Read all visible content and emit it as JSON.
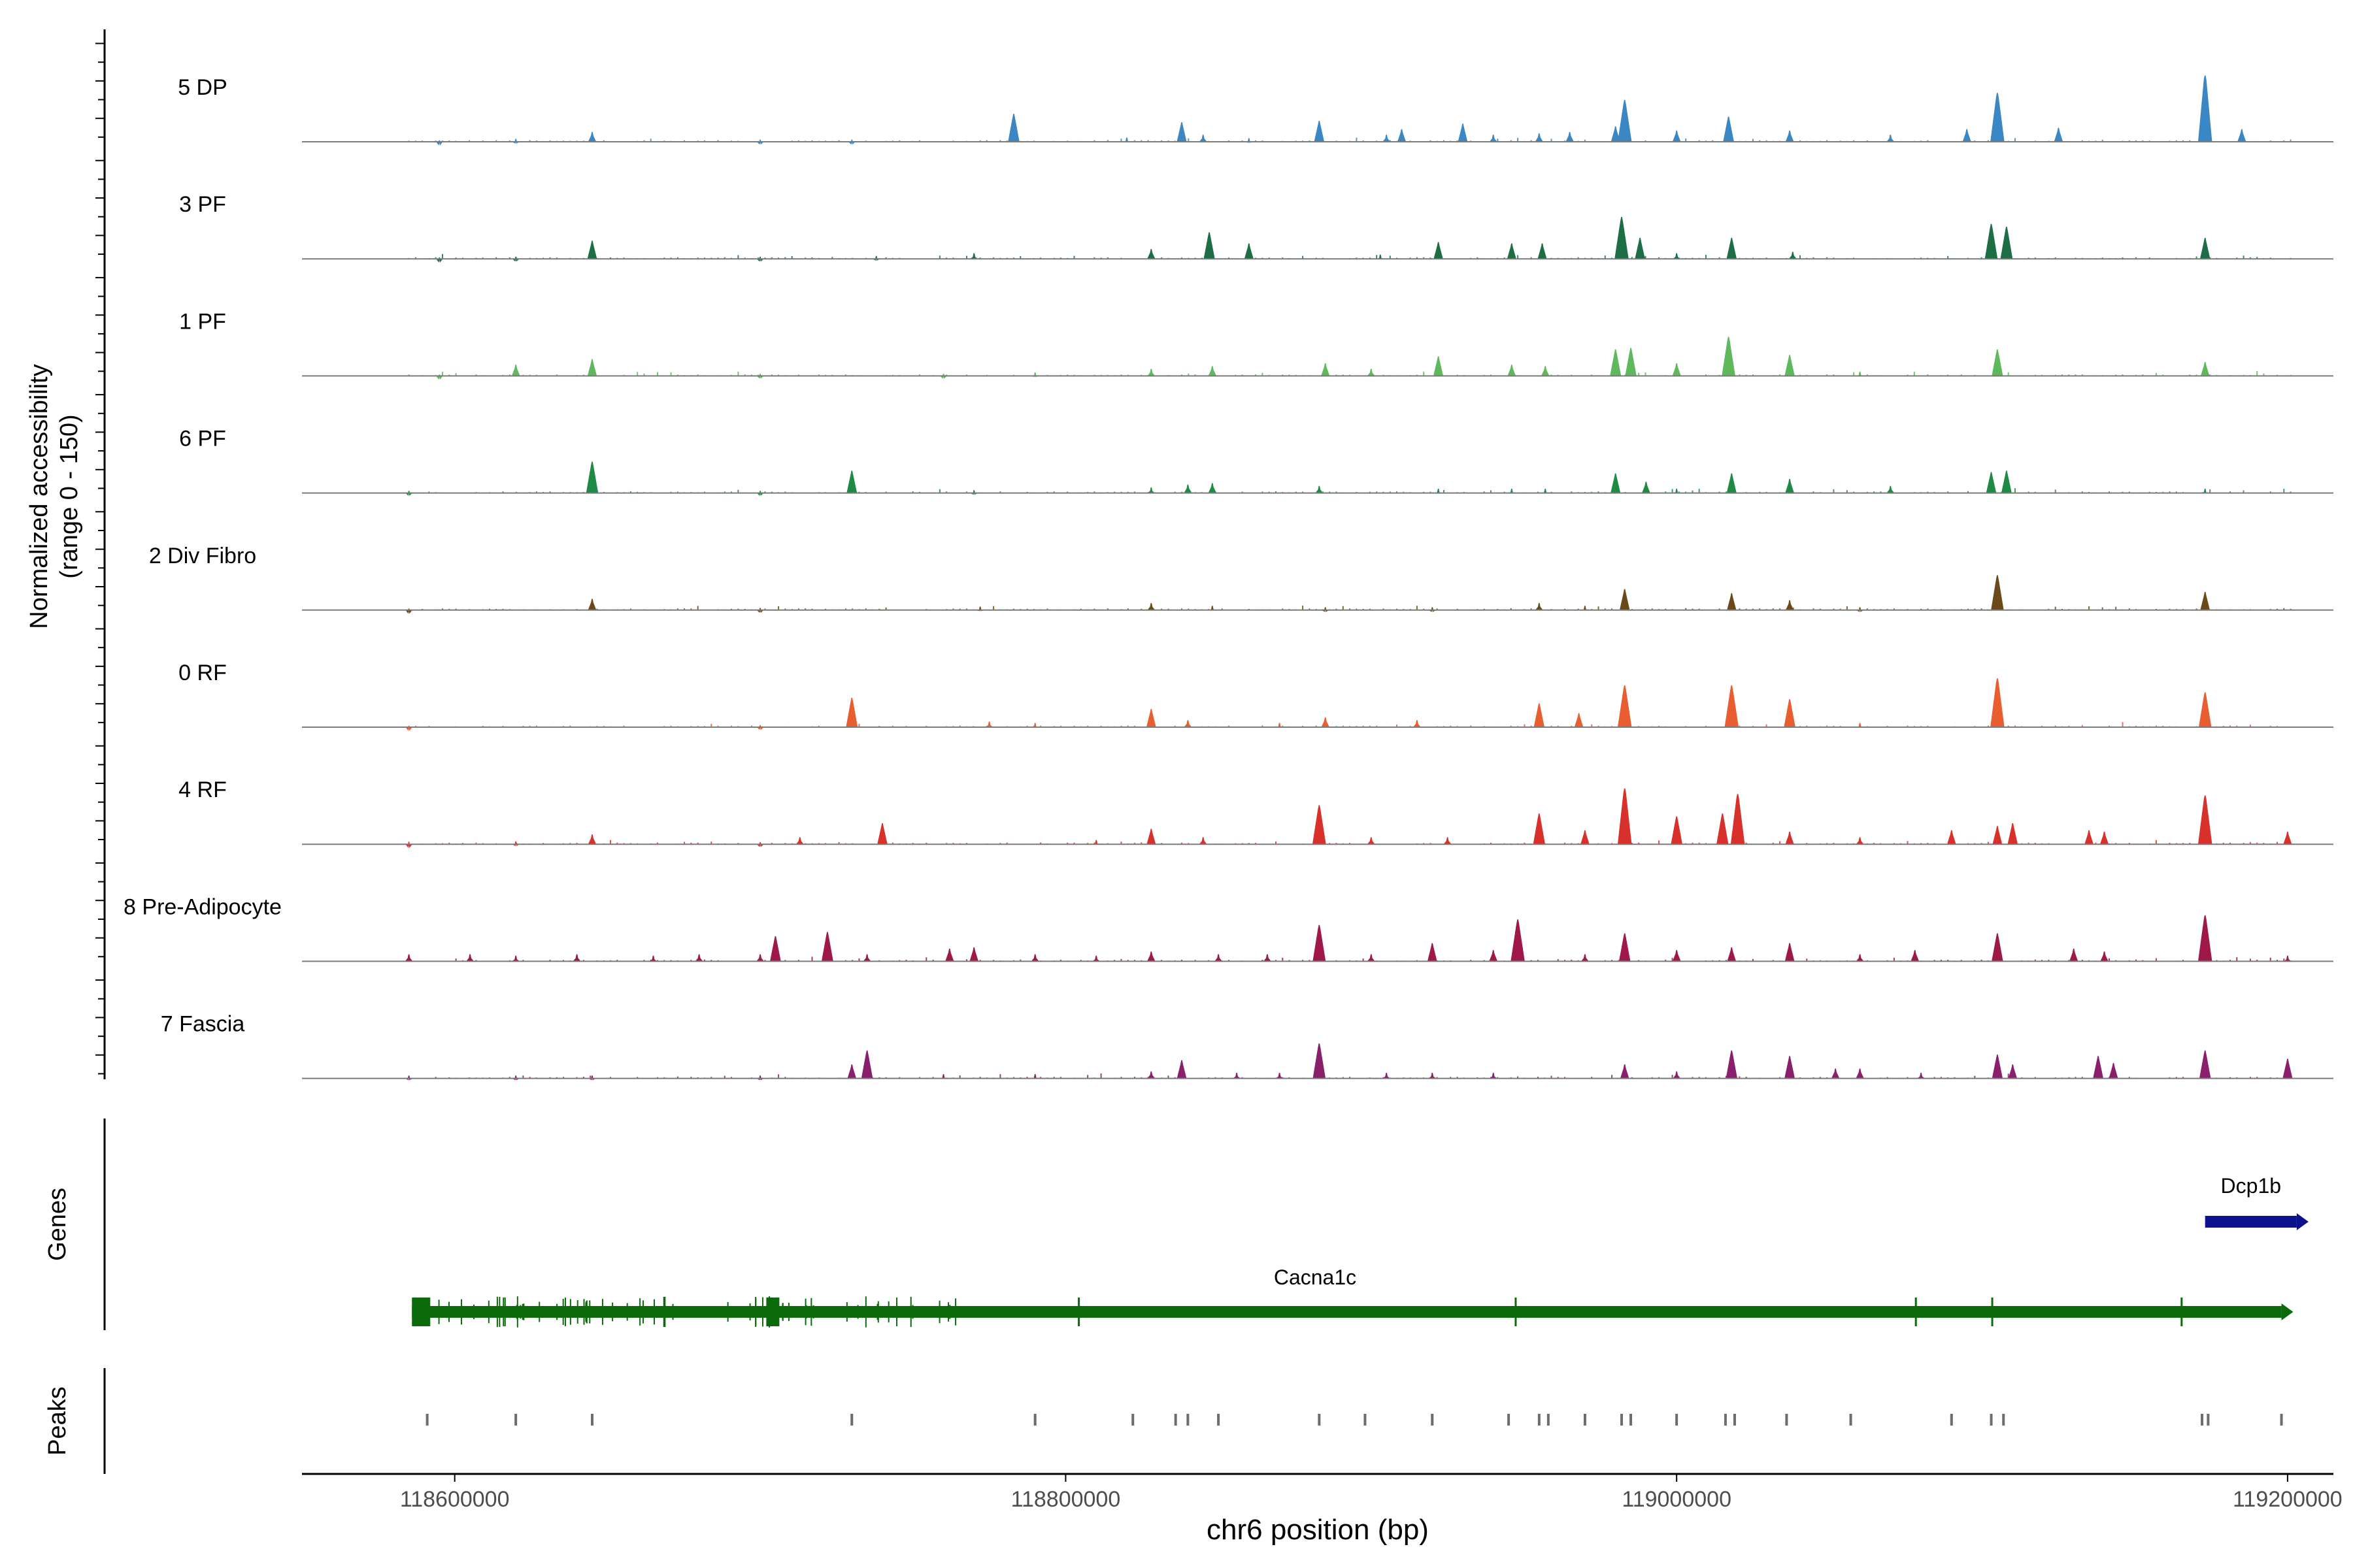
{
  "chart_data": {
    "type": "area",
    "title": "",
    "ylabel": "Normalized accessibility\n(range 0 - 150)",
    "xlabel": "chr6 position (bp)",
    "xlim": [
      118550000,
      119215000
    ],
    "ylim": [
      0,
      150
    ],
    "x_ticks": [
      "118600000",
      "118800000",
      "119000000",
      "119200000"
    ],
    "x_tick_values": [
      118600000,
      118800000,
      119000000,
      119200000
    ],
    "genes_label": "Genes",
    "peaks_label": "Peaks",
    "series": [
      {
        "name": "5 DP",
        "color": "#3a87c4",
        "peaks": [
          [
            118595000,
            2
          ],
          [
            118620000,
            4
          ],
          [
            118645000,
            14
          ],
          [
            118700000,
            3
          ],
          [
            118730000,
            3
          ],
          [
            118783000,
            40
          ],
          [
            118820000,
            6
          ],
          [
            118838000,
            28
          ],
          [
            118845000,
            10
          ],
          [
            118860000,
            5
          ],
          [
            118883000,
            30
          ],
          [
            118905000,
            10
          ],
          [
            118910000,
            18
          ],
          [
            118930000,
            26
          ],
          [
            118940000,
            10
          ],
          [
            118955000,
            12
          ],
          [
            118965000,
            14
          ],
          [
            118980000,
            22
          ],
          [
            118983000,
            60
          ],
          [
            119000000,
            16
          ],
          [
            119017000,
            36
          ],
          [
            119037000,
            16
          ],
          [
            119070000,
            10
          ],
          [
            119095000,
            18
          ],
          [
            119105000,
            70
          ],
          [
            119125000,
            20
          ],
          [
            119173000,
            95
          ],
          [
            119185000,
            18
          ]
        ]
      },
      {
        "name": "3 PF",
        "color": "#1d6e45",
        "peaks": [
          [
            118595000,
            2
          ],
          [
            118620000,
            3
          ],
          [
            118645000,
            26
          ],
          [
            118700000,
            3
          ],
          [
            118738000,
            4
          ],
          [
            118770000,
            8
          ],
          [
            118828000,
            14
          ],
          [
            118847000,
            38
          ],
          [
            118860000,
            22
          ],
          [
            118903000,
            6
          ],
          [
            118922000,
            24
          ],
          [
            118946000,
            22
          ],
          [
            118956000,
            22
          ],
          [
            118982000,
            60
          ],
          [
            118988000,
            30
          ],
          [
            119000000,
            8
          ],
          [
            119018000,
            30
          ],
          [
            119038000,
            10
          ],
          [
            119103000,
            50
          ],
          [
            119108000,
            46
          ],
          [
            119173000,
            30
          ]
        ]
      },
      {
        "name": "1 PF",
        "color": "#5fb85c",
        "peaks": [
          [
            118595000,
            2
          ],
          [
            118620000,
            16
          ],
          [
            118645000,
            24
          ],
          [
            118700000,
            3
          ],
          [
            118760000,
            3
          ],
          [
            118790000,
            5
          ],
          [
            118828000,
            10
          ],
          [
            118848000,
            14
          ],
          [
            118885000,
            18
          ],
          [
            118900000,
            10
          ],
          [
            118922000,
            28
          ],
          [
            118946000,
            16
          ],
          [
            118957000,
            14
          ],
          [
            118980000,
            38
          ],
          [
            118985000,
            40
          ],
          [
            119000000,
            18
          ],
          [
            119017000,
            56
          ],
          [
            119037000,
            30
          ],
          [
            119060000,
            6
          ],
          [
            119105000,
            38
          ],
          [
            119173000,
            20
          ]
        ]
      },
      {
        "name": "6 PF",
        "color": "#1e8b45",
        "peaks": [
          [
            118585000,
            3
          ],
          [
            118645000,
            45
          ],
          [
            118700000,
            3
          ],
          [
            118730000,
            32
          ],
          [
            118770000,
            4
          ],
          [
            118828000,
            8
          ],
          [
            118840000,
            12
          ],
          [
            118848000,
            14
          ],
          [
            118883000,
            10
          ],
          [
            118922000,
            6
          ],
          [
            118946000,
            6
          ],
          [
            118957000,
            6
          ],
          [
            118980000,
            28
          ],
          [
            118990000,
            16
          ],
          [
            119000000,
            6
          ],
          [
            119018000,
            28
          ],
          [
            119037000,
            20
          ],
          [
            119070000,
            10
          ],
          [
            119103000,
            30
          ],
          [
            119108000,
            32
          ],
          [
            119173000,
            6
          ]
        ]
      },
      {
        "name": "2 Div Fibro",
        "color": "#6b4a19",
        "peaks": [
          [
            118585000,
            2
          ],
          [
            118645000,
            16
          ],
          [
            118700000,
            3
          ],
          [
            118772000,
            5
          ],
          [
            118828000,
            10
          ],
          [
            118848000,
            6
          ],
          [
            118885000,
            4
          ],
          [
            118920000,
            4
          ],
          [
            118955000,
            10
          ],
          [
            118970000,
            6
          ],
          [
            118983000,
            30
          ],
          [
            119018000,
            24
          ],
          [
            119037000,
            14
          ],
          [
            119060000,
            4
          ],
          [
            119105000,
            50
          ],
          [
            119173000,
            26
          ]
        ]
      },
      {
        "name": "0 RF",
        "color": "#e85e30",
        "peaks": [
          [
            118585000,
            2
          ],
          [
            118700000,
            3
          ],
          [
            118730000,
            42
          ],
          [
            118775000,
            8
          ],
          [
            118790000,
            6
          ],
          [
            118828000,
            26
          ],
          [
            118840000,
            10
          ],
          [
            118870000,
            6
          ],
          [
            118885000,
            14
          ],
          [
            118915000,
            10
          ],
          [
            118955000,
            34
          ],
          [
            118968000,
            20
          ],
          [
            118983000,
            60
          ],
          [
            119018000,
            60
          ],
          [
            119037000,
            40
          ],
          [
            119060000,
            6
          ],
          [
            119105000,
            70
          ],
          [
            119173000,
            50
          ]
        ]
      },
      {
        "name": "4 RF",
        "color": "#d8302a",
        "peaks": [
          [
            118585000,
            2
          ],
          [
            118620000,
            4
          ],
          [
            118645000,
            14
          ],
          [
            118700000,
            3
          ],
          [
            118713000,
            10
          ],
          [
            118740000,
            30
          ],
          [
            118810000,
            6
          ],
          [
            118828000,
            22
          ],
          [
            118845000,
            10
          ],
          [
            118883000,
            56
          ],
          [
            118900000,
            10
          ],
          [
            118925000,
            10
          ],
          [
            118955000,
            44
          ],
          [
            118970000,
            20
          ],
          [
            118983000,
            80
          ],
          [
            119000000,
            40
          ],
          [
            119015000,
            44
          ],
          [
            119020000,
            72
          ],
          [
            119037000,
            18
          ],
          [
            119060000,
            10
          ],
          [
            119090000,
            20
          ],
          [
            119105000,
            26
          ],
          [
            119110000,
            30
          ],
          [
            119135000,
            20
          ],
          [
            119140000,
            18
          ],
          [
            119173000,
            70
          ],
          [
            119200000,
            18
          ]
        ]
      },
      {
        "name": "8 Pre-Adipocyte",
        "color": "#a0184a",
        "peaks": [
          [
            118585000,
            10
          ],
          [
            118605000,
            10
          ],
          [
            118620000,
            8
          ],
          [
            118640000,
            10
          ],
          [
            118665000,
            8
          ],
          [
            118680000,
            10
          ],
          [
            118700000,
            10
          ],
          [
            118705000,
            36
          ],
          [
            118722000,
            42
          ],
          [
            118735000,
            10
          ],
          [
            118762000,
            18
          ],
          [
            118770000,
            20
          ],
          [
            118790000,
            10
          ],
          [
            118810000,
            8
          ],
          [
            118828000,
            14
          ],
          [
            118850000,
            10
          ],
          [
            118866000,
            10
          ],
          [
            118883000,
            52
          ],
          [
            118900000,
            10
          ],
          [
            118920000,
            26
          ],
          [
            118940000,
            16
          ],
          [
            118948000,
            60
          ],
          [
            118970000,
            10
          ],
          [
            118983000,
            40
          ],
          [
            119000000,
            16
          ],
          [
            119018000,
            20
          ],
          [
            119037000,
            26
          ],
          [
            119060000,
            10
          ],
          [
            119078000,
            16
          ],
          [
            119105000,
            40
          ],
          [
            119130000,
            18
          ],
          [
            119140000,
            14
          ],
          [
            119173000,
            66
          ],
          [
            119200000,
            8
          ]
        ]
      },
      {
        "name": "7 Fascia",
        "color": "#8a1f6b",
        "peaks": [
          [
            118585000,
            4
          ],
          [
            118620000,
            4
          ],
          [
            118645000,
            4
          ],
          [
            118700000,
            4
          ],
          [
            118730000,
            20
          ],
          [
            118735000,
            40
          ],
          [
            118760000,
            6
          ],
          [
            118790000,
            6
          ],
          [
            118828000,
            10
          ],
          [
            118838000,
            26
          ],
          [
            118856000,
            8
          ],
          [
            118870000,
            8
          ],
          [
            118883000,
            50
          ],
          [
            118905000,
            8
          ],
          [
            118920000,
            8
          ],
          [
            118940000,
            8
          ],
          [
            118983000,
            20
          ],
          [
            119000000,
            10
          ],
          [
            119018000,
            40
          ],
          [
            119037000,
            32
          ],
          [
            119052000,
            14
          ],
          [
            119060000,
            14
          ],
          [
            119080000,
            8
          ],
          [
            119105000,
            34
          ],
          [
            119110000,
            20
          ],
          [
            119138000,
            32
          ],
          [
            119143000,
            22
          ],
          [
            119173000,
            40
          ],
          [
            119200000,
            28
          ]
        ]
      }
    ],
    "genes": [
      {
        "name": "Cacna1c",
        "start": 118586000,
        "end": 119198000,
        "strand": "+",
        "color": "#0b6b0b",
        "exon_blocks": [
          [
            118586000,
            118592000
          ],
          [
            118702000,
            118706000
          ]
        ]
      },
      {
        "name": "Dcp1b",
        "start": 119173000,
        "end": 119203000,
        "strand": "+",
        "color": "#0b128c"
      }
    ],
    "peak_regions": [
      118591000,
      118620000,
      118645000,
      118730000,
      118790000,
      118822000,
      118836000,
      118840000,
      118850000,
      118883000,
      118898000,
      118920000,
      118945000,
      118955000,
      118958000,
      118970000,
      118982000,
      118985000,
      119000000,
      119016000,
      119019000,
      119036000,
      119057000,
      119090000,
      119103000,
      119107000,
      119172000,
      119174000,
      119198000
    ]
  }
}
